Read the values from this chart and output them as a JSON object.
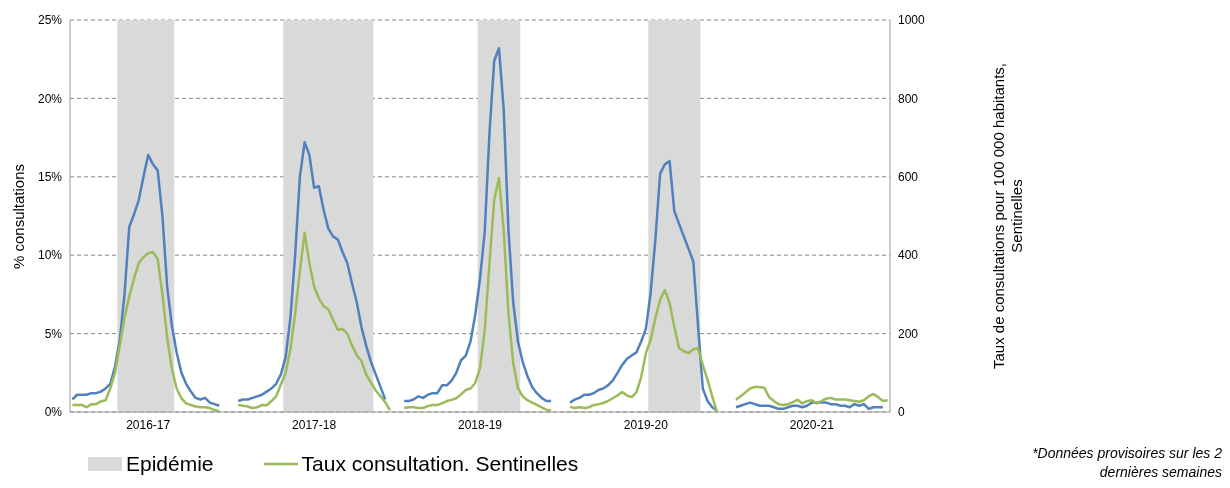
{
  "chart_data": {
    "type": "line",
    "ylabel": "% consultations",
    "y2label": "Taux de consultations pour 100 000 habitants, Sentinelles",
    "annotations": [
      "Epidémie",
      "*Données provisoires sur les 2 dernières semaines"
    ],
    "categories": [
      null,
      null,
      null,
      null,
      null,
      null,
      null,
      null,
      null,
      null,
      null,
      null,
      null,
      null,
      null,
      null,
      "2016-17",
      null,
      null,
      null,
      null,
      null,
      null,
      null,
      null,
      null,
      null,
      null,
      null,
      null,
      null,
      null,
      null,
      null,
      null,
      null,
      null,
      null,
      null,
      null,
      null,
      null,
      null,
      null,
      null,
      null,
      null,
      null,
      null,
      null,
      null,
      "2017-18",
      null,
      null,
      null,
      null,
      null,
      null,
      null,
      null,
      null,
      null,
      null,
      null,
      null,
      null,
      null,
      null,
      null,
      null,
      null,
      null,
      null,
      null,
      null,
      null,
      null,
      null,
      null,
      null,
      null,
      null,
      null,
      null,
      null,
      null,
      "2018-19",
      null,
      null,
      null,
      null,
      null,
      null,
      null,
      null,
      null,
      null,
      null,
      null,
      null,
      null,
      null,
      null,
      null,
      null,
      null,
      null,
      null,
      null,
      null,
      null,
      null,
      null,
      null,
      null,
      null,
      null,
      null,
      null,
      null,
      null,
      "2019-20",
      null,
      null,
      null,
      null,
      null,
      null,
      null,
      null,
      null,
      null,
      null,
      null,
      null,
      null,
      null,
      null,
      null,
      null,
      null,
      null,
      null,
      null,
      null,
      null,
      null,
      null,
      null,
      null,
      null,
      null,
      null,
      null,
      null,
      null,
      "2020-21",
      null,
      null,
      null,
      null,
      null,
      null,
      null,
      null,
      null,
      null,
      null,
      null,
      null,
      null,
      null,
      null
    ],
    "series": [
      {
        "color": "#4f81bd",
        "values": [
          0.8,
          1.1,
          1.1,
          1.1,
          1.2,
          1.2,
          1.3,
          1.5,
          1.8,
          2.9,
          4.6,
          7.5,
          11.8,
          12.6,
          13.5,
          15.0,
          16.4,
          15.8,
          15.4,
          12.5,
          8.0,
          5.5,
          3.8,
          2.5,
          1.8,
          1.3,
          0.9,
          0.8,
          0.9,
          0.6,
          0.5,
          0.4,
          null,
          null,
          null,
          0.7,
          0.8,
          0.8,
          0.9,
          1.0,
          1.1,
          1.3,
          1.5,
          1.8,
          2.4,
          3.5,
          6.0,
          10.0,
          15.0,
          17.2,
          16.4,
          14.3,
          14.4,
          12.9,
          11.7,
          11.2,
          11.0,
          10.2,
          9.5,
          8.2,
          7.0,
          5.4,
          4.2,
          3.2,
          2.4,
          1.6,
          0.8,
          null,
          null,
          null,
          0.7,
          0.7,
          0.8,
          1.0,
          0.9,
          1.1,
          1.2,
          1.2,
          1.7,
          1.7,
          2.0,
          2.5,
          3.3,
          3.6,
          4.5,
          6.2,
          8.5,
          11.5,
          17.8,
          22.4,
          23.2,
          19.3,
          11.6,
          7.0,
          4.5,
          3.2,
          2.3,
          1.6,
          1.2,
          0.9,
          0.7,
          0.7,
          null,
          null,
          null,
          0.6,
          0.8,
          0.9,
          1.1,
          1.1,
          1.2,
          1.4,
          1.5,
          1.7,
          2.0,
          2.5,
          3.0,
          3.4,
          3.6,
          3.8,
          4.5,
          5.3,
          7.6,
          11.0,
          15.2,
          15.8,
          16.0,
          12.8,
          12.0,
          11.2,
          10.4,
          9.6,
          5.5,
          1.5,
          0.7,
          0.3,
          0.1,
          null,
          null,
          null,
          0.3,
          0.4,
          0.5,
          0.6,
          0.5,
          0.4,
          0.4,
          0.4,
          0.3,
          0.2,
          0.2,
          0.3,
          0.4,
          0.4,
          0.3,
          0.4,
          0.6,
          0.6,
          0.6,
          0.6,
          0.5,
          0.5,
          0.4,
          0.4,
          0.3,
          0.5,
          0.4,
          0.5,
          0.2,
          0.3,
          0.3,
          0.3,
          null
        ]
      },
      {
        "name": "Taux consultation. Sentinelles",
        "axis": "y2",
        "color": "#9bbb59",
        "values": [
          18,
          18,
          18,
          12,
          20,
          20,
          27,
          30,
          60,
          100,
          170,
          240,
          295,
          340,
          380,
          395,
          405,
          408,
          390,
          300,
          190,
          110,
          60,
          35,
          22,
          18,
          14,
          12,
          12,
          10,
          5,
          2,
          null,
          null,
          null,
          18,
          16,
          14,
          10,
          12,
          18,
          17,
          28,
          40,
          70,
          100,
          160,
          250,
          360,
          457,
          380,
          320,
          290,
          270,
          262,
          235,
          210,
          212,
          200,
          170,
          145,
          130,
          95,
          75,
          55,
          40,
          25,
          5,
          null,
          null,
          10,
          12,
          12,
          10,
          10,
          15,
          18,
          18,
          22,
          28,
          31,
          35,
          45,
          56,
          60,
          74,
          112,
          209,
          380,
          541,
          597,
          464,
          253,
          125,
          61,
          40,
          30,
          24,
          18,
          12,
          6,
          3,
          null,
          null,
          null,
          13,
          10,
          12,
          10,
          12,
          18,
          20,
          23,
          28,
          35,
          42,
          51,
          42,
          38,
          50,
          89,
          150,
          184,
          240,
          286,
          311,
          278,
          217,
          163,
          155,
          150,
          160,
          163,
          120,
          82,
          40,
          0,
          null,
          null,
          null,
          31,
          40,
          50,
          60,
          64,
          64,
          62,
          38,
          28,
          20,
          18,
          20,
          25,
          31,
          22,
          28,
          30,
          22,
          28,
          34,
          36,
          32,
          32,
          32,
          30,
          28,
          26,
          30,
          40,
          46,
          38,
          28,
          30
        ]
      }
    ],
    "ylim": [
      0,
      25
    ],
    "yticks": [
      {
        "value": 0,
        "label": "0%"
      },
      {
        "value": 5,
        "label": "5%"
      },
      {
        "value": 10,
        "label": "10%"
      },
      {
        "value": 15,
        "label": "15%"
      },
      {
        "value": 20,
        "label": "20%"
      },
      {
        "value": 25,
        "label": "25%"
      }
    ],
    "y2lim": [
      0,
      1000
    ],
    "y2ticks": [
      0,
      200,
      400,
      600,
      800,
      1000
    ],
    "grid": "y",
    "legend": "bottom",
    "marker": "none"
  }
}
